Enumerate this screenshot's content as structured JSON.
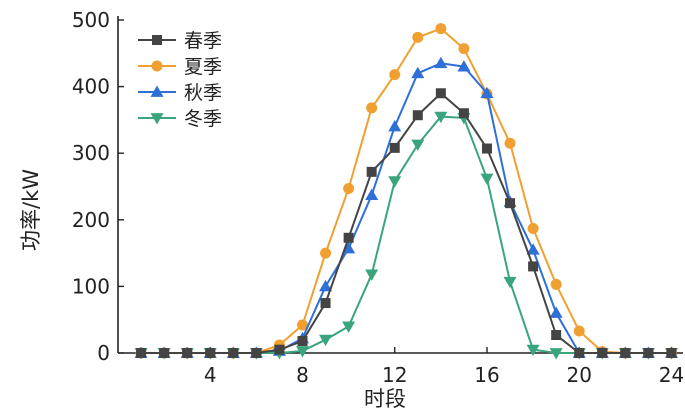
{
  "chart_data": {
    "type": "line",
    "xlabel": "时段",
    "ylabel": "功率/kW",
    "xlim": [
      0,
      24.5
    ],
    "ylim": [
      0,
      500
    ],
    "xticks": [
      4,
      8,
      12,
      16,
      20,
      24
    ],
    "yticks": [
      0,
      100,
      200,
      300,
      400,
      500
    ],
    "x": [
      1,
      2,
      3,
      4,
      5,
      6,
      7,
      8,
      9,
      10,
      11,
      12,
      13,
      14,
      15,
      16,
      17,
      18,
      19,
      20,
      21,
      22,
      23,
      24
    ],
    "legend_position": "top-left",
    "series": [
      {
        "name": "春季",
        "color": "#444444",
        "marker": "square",
        "values": [
          0,
          0,
          0,
          0,
          0,
          0,
          5,
          18,
          75,
          173,
          272,
          308,
          357,
          390,
          360,
          307,
          225,
          130,
          27,
          0,
          0,
          0,
          0,
          0
        ]
      },
      {
        "name": "夏季",
        "color": "#f0a030",
        "marker": "circle",
        "values": [
          0,
          0,
          0,
          0,
          0,
          0,
          12,
          42,
          150,
          247,
          368,
          418,
          474,
          487,
          457,
          389,
          315,
          187,
          103,
          33,
          2,
          0,
          0,
          0
        ]
      },
      {
        "name": "秋季",
        "color": "#2e6fd8",
        "marker": "triangle-up",
        "values": [
          0,
          0,
          0,
          0,
          0,
          0,
          3,
          22,
          100,
          157,
          237,
          340,
          420,
          435,
          430,
          390,
          227,
          155,
          60,
          0,
          0,
          0,
          0,
          0
        ]
      },
      {
        "name": "冬季",
        "color": "#3aa57c",
        "marker": "triangle-down",
        "values": [
          0,
          0,
          0,
          0,
          0,
          0,
          0,
          3,
          20,
          40,
          118,
          258,
          313,
          355,
          353,
          262,
          107,
          5,
          0,
          0,
          0,
          0,
          0,
          0
        ]
      }
    ]
  }
}
